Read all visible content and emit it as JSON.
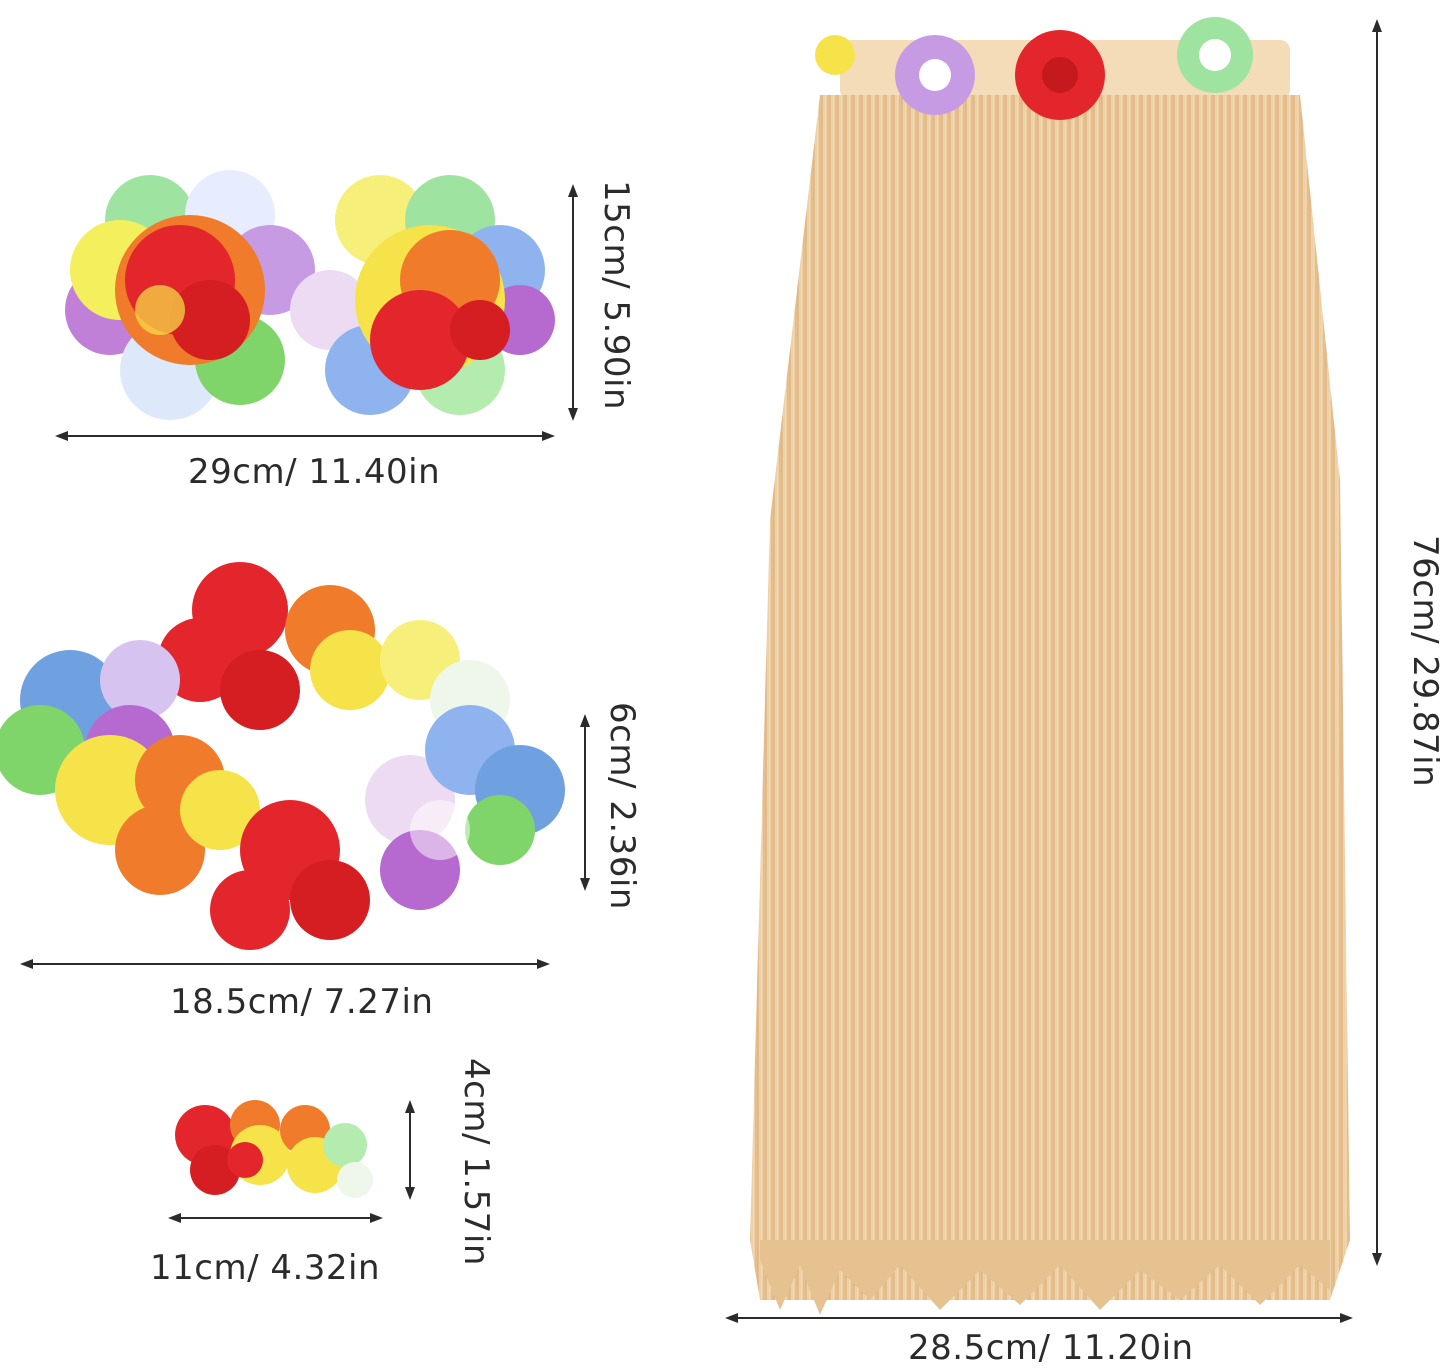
{
  "items": {
    "bra": {
      "width_label": "29cm/ 11.40in",
      "height_label": "15cm/ 5.90in"
    },
    "lei": {
      "width_label": "18.5cm/ 7.27in",
      "height_label": "6cm/ 2.36in"
    },
    "wristband": {
      "width_label": "11cm/ 4.32in",
      "height_label": "4cm/ 1.57in"
    },
    "skirt": {
      "width_label": "28.5cm/ 11.20in",
      "height_label": "76cm/ 29.87in"
    }
  },
  "colors": {
    "dimension_line": "#2b2b2b",
    "skirt_grass": "#ecc89a",
    "flower_red": "#e3262b",
    "flower_yellow": "#f6e34a",
    "flower_orange": "#f07b2a",
    "flower_purple": "#b66ad0",
    "flower_blue": "#6fa0e0",
    "flower_green": "#7fd46a"
  }
}
